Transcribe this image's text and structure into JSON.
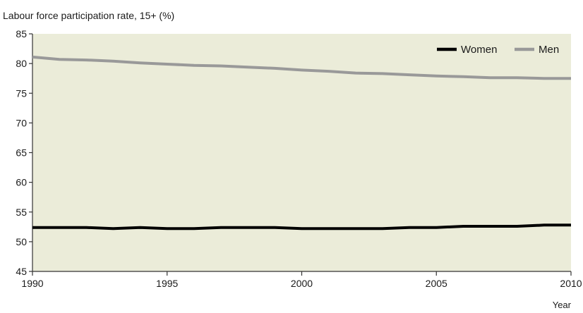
{
  "chart_data": {
    "type": "line",
    "title": "Labour force participation rate, 15+  (%)",
    "xlabel": "Year",
    "ylabel": "",
    "xlim": [
      1990,
      2010
    ],
    "ylim": [
      45,
      85
    ],
    "x_ticks": [
      "1990",
      "1995",
      "2000",
      "2005",
      "2010"
    ],
    "y_ticks": [
      "45",
      "50",
      "55",
      "60",
      "65",
      "70",
      "75",
      "80",
      "85"
    ],
    "grid": false,
    "legend_position": "top-right",
    "x": [
      1990,
      1991,
      1992,
      1993,
      1994,
      1995,
      1996,
      1997,
      1998,
      1999,
      2000,
      2001,
      2002,
      2003,
      2004,
      2005,
      2006,
      2007,
      2008,
      2009,
      2010
    ],
    "series": [
      {
        "name": "Women",
        "color": "#000000",
        "values": [
          52.4,
          52.4,
          52.4,
          52.2,
          52.4,
          52.2,
          52.2,
          52.4,
          52.4,
          52.4,
          52.2,
          52.2,
          52.2,
          52.2,
          52.4,
          52.4,
          52.6,
          52.6,
          52.6,
          52.8,
          52.8
        ]
      },
      {
        "name": "Men",
        "color": "#999999",
        "values": [
          81.1,
          80.7,
          80.6,
          80.4,
          80.1,
          79.9,
          79.7,
          79.6,
          79.4,
          79.2,
          78.9,
          78.7,
          78.4,
          78.3,
          78.1,
          77.9,
          77.8,
          77.6,
          77.6,
          77.5,
          77.5
        ]
      }
    ]
  },
  "colors": {
    "plot_background": "#ebecd9",
    "axis": "#333333"
  }
}
